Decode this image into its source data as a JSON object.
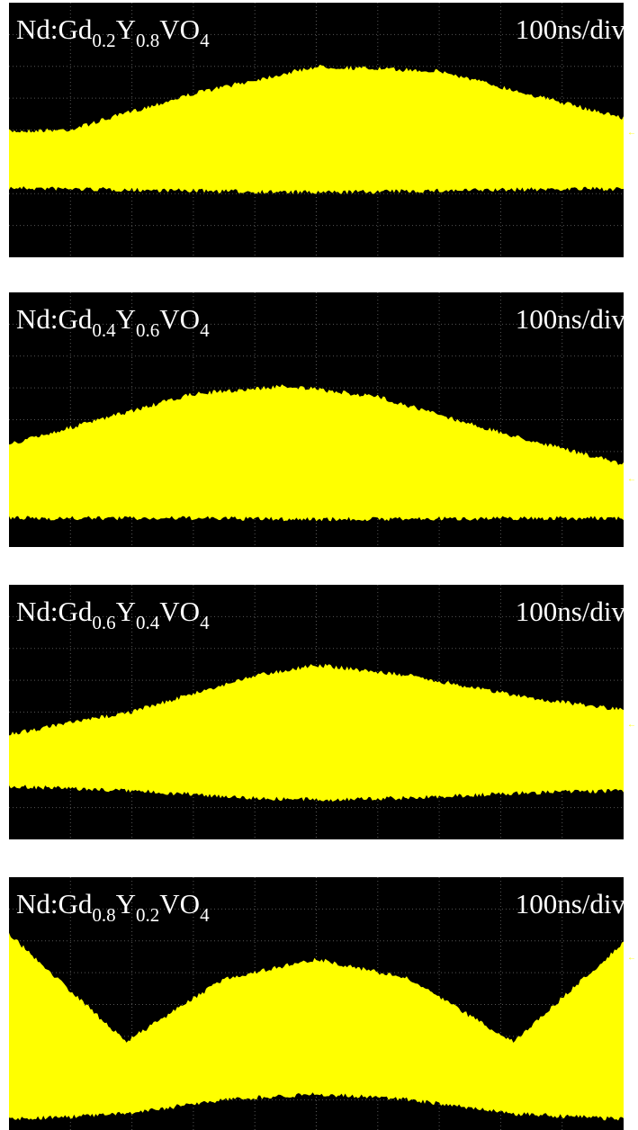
{
  "panels": [
    {
      "label": [
        "Nd:Gd",
        "0.2",
        "Y",
        "0.8",
        "VO",
        "4"
      ],
      "timebase": "100ns/div"
    },
    {
      "label": [
        "Nd:Gd",
        "0.4",
        "Y",
        "0.6",
        "VO",
        "4"
      ],
      "timebase": "100ns/div"
    },
    {
      "label": [
        "Nd:Gd",
        "0.6",
        "Y",
        "0.4",
        "VO",
        "4"
      ],
      "timebase": "100ns/div"
    },
    {
      "label": [
        "Nd:Gd",
        "0.8",
        "Y",
        "0.2",
        "VO",
        "4"
      ],
      "timebase": "100ns/div"
    }
  ]
}
